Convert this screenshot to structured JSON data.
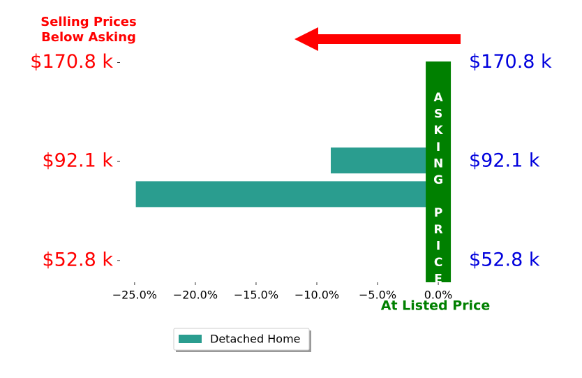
{
  "chart_data": {
    "type": "barh",
    "annotations": [
      "Selling Prices",
      "Below Asking",
      "ASKING PRICE",
      "At Listed Price"
    ],
    "series": [
      {
        "name": "Detached Home",
        "color": "#2a9d8f",
        "values": [
          -8.85,
          -24.9
        ]
      }
    ],
    "y": [
      1.01,
      0.67
    ],
    "xlim": [
      -26.2,
      1.26
    ],
    "xticks": [
      {
        "value": -25,
        "label": "−25.0%"
      },
      {
        "value": -20,
        "label": "−20.0%"
      },
      {
        "value": -15,
        "label": "−15.0%"
      },
      {
        "value": -10,
        "label": "−10.0%"
      },
      {
        "value": -5,
        "label": "−5.0%"
      },
      {
        "value": 0,
        "label": "0.0%"
      }
    ],
    "ylim": [
      -0.22,
      2.01
    ],
    "yticks": [
      {
        "value": 2,
        "label": "$170.8 k"
      },
      {
        "value": 1,
        "label": "$92.1 k"
      },
      {
        "value": 0,
        "label": "$52.8 k"
      }
    ],
    "y2lim": [
      -0.22,
      2.01
    ],
    "y2ticks": [
      {
        "value": 2,
        "label": "$170.8 k"
      },
      {
        "value": 1,
        "label": "$92.1 k"
      },
      {
        "value": 0,
        "label": "$52.8 k"
      }
    ],
    "ytick_color": "#ff0000",
    "y2tick_color": "#0000dd",
    "band_color": "#008000",
    "legend": "lower left"
  }
}
